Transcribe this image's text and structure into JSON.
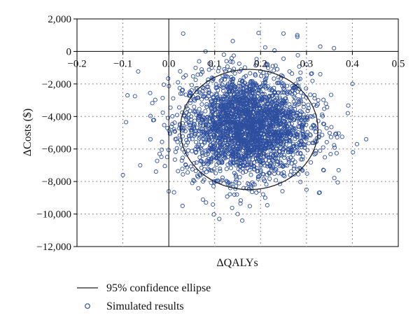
{
  "chart_data": {
    "type": "scatter",
    "title": "",
    "xlabel": "ΔQALYs",
    "ylabel": "ΔCosts ($)",
    "xlim": [
      -0.2,
      0.5
    ],
    "ylim": [
      -12000,
      2000
    ],
    "xticks": [
      -0.2,
      -0.1,
      0.0,
      0.1,
      0.2,
      0.3,
      0.4,
      0.5
    ],
    "yticks": [
      2000,
      0,
      -2000,
      -4000,
      -6000,
      -8000,
      -10000,
      -12000
    ],
    "xtick_labels": [
      "−0.2",
      "−0.1",
      "0.0",
      "0.1",
      "0.2",
      "0.3",
      "0.4",
      "0.5"
    ],
    "ytick_labels": [
      "2,000",
      "0",
      "−2,000",
      "−4,000",
      "−6,000",
      "−8,000",
      "−10,000",
      "−12,000"
    ],
    "grid": "dotted",
    "legend_position": "bottom",
    "series": [
      {
        "name": "Simulated results",
        "marker": "open-circle",
        "color": "#2e4f9e",
        "approx_count": 5000,
        "approx_mean": {
          "x": 0.17,
          "y": -4600
        },
        "approx_sd": {
          "x": 0.07,
          "y": 1600
        },
        "points": [
          {
            "x": 0.25,
            "y": 1100
          },
          {
            "x": 0.28,
            "y": 900
          },
          {
            "x": 0.28,
            "y": 1000
          },
          {
            "x": 0.08,
            "y": 0
          },
          {
            "x": 0.36,
            "y": 200
          },
          {
            "x": 0.33,
            "y": 300
          },
          {
            "x": 0.21,
            "y": 250
          },
          {
            "x": 0.12,
            "y": -200
          },
          {
            "x": -0.09,
            "y": -2700
          },
          {
            "x": -0.1,
            "y": -7600
          },
          {
            "x": 0.15,
            "y": -10000
          },
          {
            "x": 0.16,
            "y": -10400
          },
          {
            "x": 0.43,
            "y": -5400
          },
          {
            "x": 0.41,
            "y": -5700
          },
          {
            "x": 0.4,
            "y": -2000
          },
          {
            "x": 0.39,
            "y": -3800
          },
          {
            "x": 0.03,
            "y": -9500
          },
          {
            "x": 0.11,
            "y": -10300
          },
          {
            "x": 0.21,
            "y": -9000
          },
          {
            "x": 0.3,
            "y": -8500
          },
          {
            "x": 0.37,
            "y": -7300
          },
          {
            "x": 0.0,
            "y": -8600
          },
          {
            "x": -0.02,
            "y": -6300
          },
          {
            "x": -0.04,
            "y": -5400
          },
          {
            "x": 0.02,
            "y": -1900
          },
          {
            "x": 0.07,
            "y": -1400
          },
          {
            "x": 0.3,
            "y": -800
          },
          {
            "x": 0.33,
            "y": -1400
          }
        ]
      },
      {
        "name": "95% confidence ellipse",
        "type": "ellipse",
        "color": "#222222",
        "center": {
          "x": 0.175,
          "y": -4800
        },
        "semi_axis_x": 0.15,
        "semi_axis_y": 3700
      }
    ],
    "legend": [
      {
        "label": "95% confidence ellipse",
        "symbol": "line"
      },
      {
        "label": "Simulated results",
        "symbol": "open-circle"
      }
    ]
  }
}
